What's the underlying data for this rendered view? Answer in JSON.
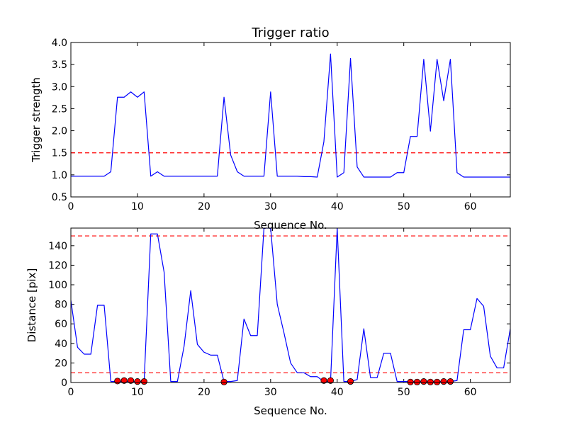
{
  "chart_data": [
    {
      "type": "line",
      "title": "Trigger ratio",
      "xlabel": "Sequence No.",
      "ylabel": "Trigger strength",
      "xlim": [
        0,
        66
      ],
      "ylim": [
        0.5,
        4.0
      ],
      "xticks": [
        0,
        10,
        20,
        30,
        40,
        50,
        60
      ],
      "yticks": [
        0.5,
        1.0,
        1.5,
        2.0,
        2.5,
        3.0,
        3.5,
        4.0
      ],
      "ytick_decimals": 1,
      "grid": false,
      "series": [
        {
          "color": "#0000ff",
          "x": [
            0,
            1,
            2,
            3,
            4,
            5,
            6,
            7,
            8,
            9,
            10,
            11,
            12,
            13,
            14,
            15,
            16,
            17,
            18,
            19,
            20,
            21,
            22,
            23,
            24,
            25,
            26,
            27,
            28,
            29,
            30,
            31,
            32,
            33,
            34,
            35,
            36,
            37,
            38,
            39,
            40,
            41,
            42,
            43,
            44,
            45,
            46,
            47,
            48,
            49,
            50,
            51,
            52,
            53,
            54,
            55,
            56,
            57,
            58,
            59,
            60,
            61,
            62,
            63,
            64,
            65,
            66
          ],
          "y": [
            0.97,
            0.97,
            0.97,
            0.97,
            0.97,
            0.97,
            1.07,
            2.76,
            2.76,
            2.88,
            2.76,
            2.88,
            0.97,
            1.07,
            0.97,
            0.97,
            0.97,
            0.97,
            0.97,
            0.97,
            0.97,
            0.97,
            0.97,
            2.76,
            1.45,
            1.07,
            0.97,
            0.97,
            0.97,
            0.97,
            2.88,
            0.97,
            0.97,
            0.97,
            0.97,
            0.96,
            0.96,
            0.95,
            1.75,
            3.74,
            0.95,
            1.05,
            3.64,
            1.18,
            0.95,
            0.95,
            0.95,
            0.95,
            0.95,
            1.05,
            1.05,
            1.87,
            1.87,
            3.62,
            1.99,
            3.62,
            2.68,
            3.62,
            1.05,
            0.95,
            0.95,
            0.95,
            0.95,
            0.95,
            0.95,
            0.95,
            0.95
          ]
        }
      ],
      "hlines": [
        {
          "y": 1.5,
          "color": "#ff0000",
          "style": "dashed"
        }
      ]
    },
    {
      "type": "line",
      "title": "",
      "xlabel": "Sequence No.",
      "ylabel": "Distance [pix]",
      "xlim": [
        0,
        66
      ],
      "ylim": [
        0,
        158
      ],
      "xticks": [
        0,
        10,
        20,
        30,
        40,
        50,
        60
      ],
      "yticks": [
        0,
        20,
        40,
        60,
        80,
        100,
        120,
        140
      ],
      "ytick_decimals": 0,
      "grid": false,
      "series": [
        {
          "color": "#0000ff",
          "x": [
            0,
            1,
            2,
            3,
            4,
            5,
            6,
            7,
            8,
            9,
            10,
            11,
            12,
            13,
            14,
            15,
            16,
            17,
            18,
            19,
            20,
            21,
            22,
            23,
            24,
            25,
            26,
            27,
            28,
            29,
            30,
            31,
            32,
            33,
            34,
            35,
            36,
            37,
            38,
            39,
            40,
            41,
            42,
            43,
            44,
            45,
            46,
            47,
            48,
            49,
            50,
            51,
            52,
            53,
            54,
            55,
            56,
            57,
            58,
            59,
            60,
            61,
            62,
            63,
            64,
            65,
            66
          ],
          "y": [
            84,
            36,
            29,
            29,
            79,
            79,
            1,
            1,
            1,
            1,
            1,
            1,
            152,
            152,
            113,
            1,
            1,
            37,
            94,
            39,
            31,
            28,
            28,
            1,
            1,
            2,
            65,
            48,
            48,
            158,
            158,
            80,
            51,
            20,
            10,
            10,
            6,
            6,
            1,
            1,
            158,
            1,
            1,
            3,
            55,
            5,
            5,
            30,
            30,
            1,
            1,
            1,
            1,
            1,
            1,
            1,
            1,
            1,
            2,
            54,
            54,
            86,
            78,
            27,
            15,
            15,
            55
          ]
        }
      ],
      "markers": {
        "color": "#ff0000",
        "x": [
          7,
          8,
          9,
          10,
          11,
          23,
          38,
          39,
          42,
          51,
          52,
          53,
          54,
          55,
          56,
          57
        ],
        "y": [
          1.5,
          2,
          2,
          1,
          1,
          0.5,
          2,
          2,
          1,
          0.5,
          0.5,
          1,
          0.5,
          0.5,
          1,
          1
        ]
      },
      "hlines": [
        {
          "y": 150,
          "color": "#ff0000",
          "style": "dashed"
        },
        {
          "y": 10,
          "color": "#ff0000",
          "style": "dashed"
        }
      ]
    }
  ]
}
